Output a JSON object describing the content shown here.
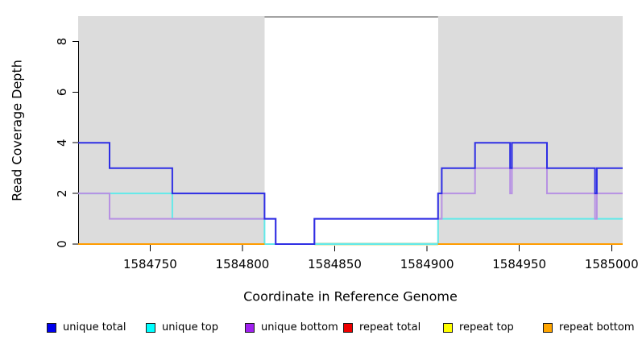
{
  "chart_data": {
    "type": "line",
    "subtype": "step-coverage",
    "title": "",
    "xlabel": "Coordinate in Reference Genome",
    "ylabel": "Read Coverage Depth",
    "xlim": [
      1584711,
      1585006
    ],
    "ylim": [
      0,
      9
    ],
    "xticks": [
      1584750,
      1584800,
      1584850,
      1584900,
      1584950,
      1585000
    ],
    "yticks": [
      0,
      2,
      4,
      6,
      8
    ],
    "grid": false,
    "legend_position": "bottom",
    "shaded_regions": {
      "note": "repeat regions",
      "color": "#DCDCDC",
      "ranges": [
        [
          1584711,
          1584812
        ],
        [
          1584906,
          1585006
        ]
      ]
    },
    "gap_top_line": {
      "y": 9,
      "range": [
        1584812,
        1584906
      ],
      "color": "#848484"
    },
    "baseline_overlap_artifact": {
      "range": [
        1584839,
        1584906
      ],
      "green": "#7ABF7A",
      "pale_yellow": "#EDEDC2"
    },
    "series": [
      {
        "name": "unique total",
        "color": "#2E2EE4",
        "legend_color": "#0000EE",
        "points": [
          [
            1584711,
            4
          ],
          [
            1584728,
            3
          ],
          [
            1584762,
            2
          ],
          [
            1584812,
            1
          ],
          [
            1584818,
            0
          ],
          [
            1584839,
            1
          ],
          [
            1584906,
            2
          ],
          [
            1584908,
            3
          ],
          [
            1584926,
            4
          ],
          [
            1584945,
            3
          ],
          [
            1584946,
            4
          ],
          [
            1584965,
            3
          ],
          [
            1584991,
            2
          ],
          [
            1584992,
            3
          ],
          [
            1585006,
            3
          ]
        ]
      },
      {
        "name": "unique top",
        "color": "#63E9E9",
        "legend_color": "#00FFFF",
        "points": [
          [
            1584711,
            2
          ],
          [
            1584762,
            1
          ],
          [
            1584812,
            0
          ],
          [
            1584906,
            1
          ],
          [
            1585006,
            1
          ]
        ]
      },
      {
        "name": "unique bottom",
        "color": "#B791E3",
        "legend_color": "#A020F0",
        "points": [
          [
            1584711,
            2
          ],
          [
            1584728,
            1
          ],
          [
            1584818,
            0
          ],
          [
            1584839,
            1
          ],
          [
            1584908,
            2
          ],
          [
            1584926,
            3
          ],
          [
            1584945,
            2
          ],
          [
            1584946,
            3
          ],
          [
            1584965,
            2
          ],
          [
            1584991,
            1
          ],
          [
            1584992,
            2
          ],
          [
            1585006,
            2
          ]
        ]
      },
      {
        "name": "repeat total",
        "color": "#E00000",
        "legend_color": "#EE0000",
        "segments": [
          [
            [
              1584711,
              0
            ],
            [
              1584812,
              0
            ]
          ],
          [
            [
              1584906,
              0
            ],
            [
              1585006,
              0
            ]
          ]
        ]
      },
      {
        "name": "repeat top",
        "color": "#F0F000",
        "legend_color": "#FFFF00",
        "segments": [
          [
            [
              1584711,
              0
            ],
            [
              1584812,
              0
            ]
          ],
          [
            [
              1584906,
              0
            ],
            [
              1585006,
              0
            ]
          ]
        ]
      },
      {
        "name": "repeat bottom",
        "color": "#FF9C00",
        "legend_color": "#FFA500",
        "segments": [
          [
            [
              1584711,
              0
            ],
            [
              1584812,
              0
            ]
          ],
          [
            [
              1584906,
              0
            ],
            [
              1585006,
              0
            ]
          ]
        ]
      }
    ]
  }
}
